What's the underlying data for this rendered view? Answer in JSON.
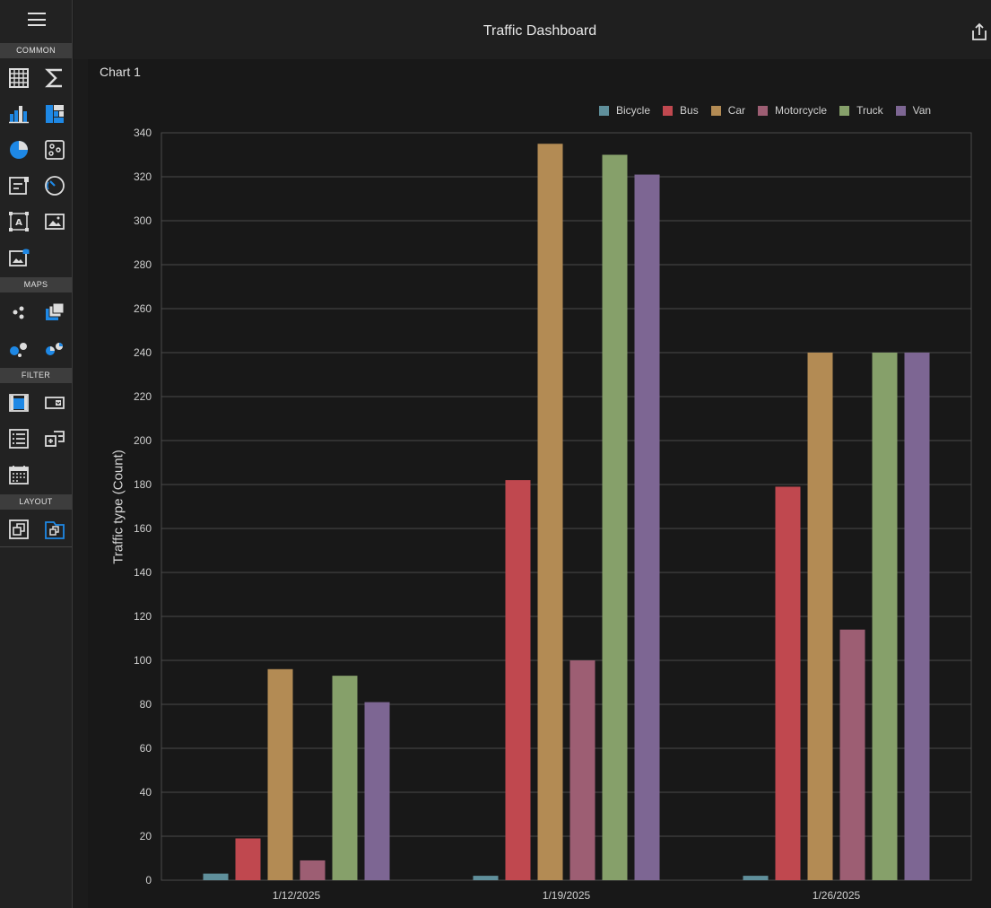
{
  "topbar": {
    "title": "Traffic Dashboard"
  },
  "sidebar": {
    "sections": [
      {
        "label": "COMMON"
      },
      {
        "label": "MAPS"
      },
      {
        "label": "FILTER"
      },
      {
        "label": "LAYOUT"
      }
    ],
    "tools": [
      {
        "name": "grid-icon"
      },
      {
        "name": "sum-icon"
      },
      {
        "name": "bar-chart-icon"
      },
      {
        "name": "treemap-icon"
      },
      {
        "name": "pie-chart-icon"
      },
      {
        "name": "scatter-icon"
      },
      {
        "name": "card-icon"
      },
      {
        "name": "gauge-icon"
      },
      {
        "name": "text-box-icon"
      },
      {
        "name": "image-icon"
      },
      {
        "name": "bound-image-icon"
      },
      {
        "name": "geo-point-icon"
      },
      {
        "name": "choropleth-icon"
      },
      {
        "name": "bubble-map-icon"
      },
      {
        "name": "pie-map-icon"
      },
      {
        "name": "range-filter-icon"
      },
      {
        "name": "combo-box-icon"
      },
      {
        "name": "list-box-icon"
      },
      {
        "name": "tree-view-icon"
      },
      {
        "name": "date-filter-icon"
      },
      {
        "name": "group-icon"
      },
      {
        "name": "tab-container-icon"
      }
    ]
  },
  "chart": {
    "title": "Chart 1"
  },
  "colors": {
    "Bicycle": "#5f8f9b",
    "Bus": "#c0484f",
    "Car": "#b38b54",
    "Motorcycle": "#9d5e73",
    "Truck": "#86a06a",
    "Van": "#7d6693",
    "accent": "#1e88e5"
  },
  "chart_data": {
    "type": "bar",
    "categories": [
      "1/12/2025",
      "1/19/2025",
      "1/26/2025"
    ],
    "series": [
      {
        "name": "Bicycle",
        "values": [
          3,
          2,
          2
        ]
      },
      {
        "name": "Bus",
        "values": [
          19,
          182,
          179
        ]
      },
      {
        "name": "Car",
        "values": [
          96,
          335,
          240
        ]
      },
      {
        "name": "Motorcycle",
        "values": [
          9,
          100,
          114
        ]
      },
      {
        "name": "Truck",
        "values": [
          93,
          330,
          240
        ]
      },
      {
        "name": "Van",
        "values": [
          81,
          321,
          240
        ]
      }
    ],
    "ylabel": "Traffic type (Count)",
    "ylim": [
      0,
      340
    ],
    "yticks": [
      0,
      20,
      40,
      60,
      80,
      100,
      120,
      140,
      160,
      180,
      200,
      220,
      240,
      260,
      280,
      300,
      320,
      340
    ],
    "grid": true,
    "legend": "top-right"
  }
}
